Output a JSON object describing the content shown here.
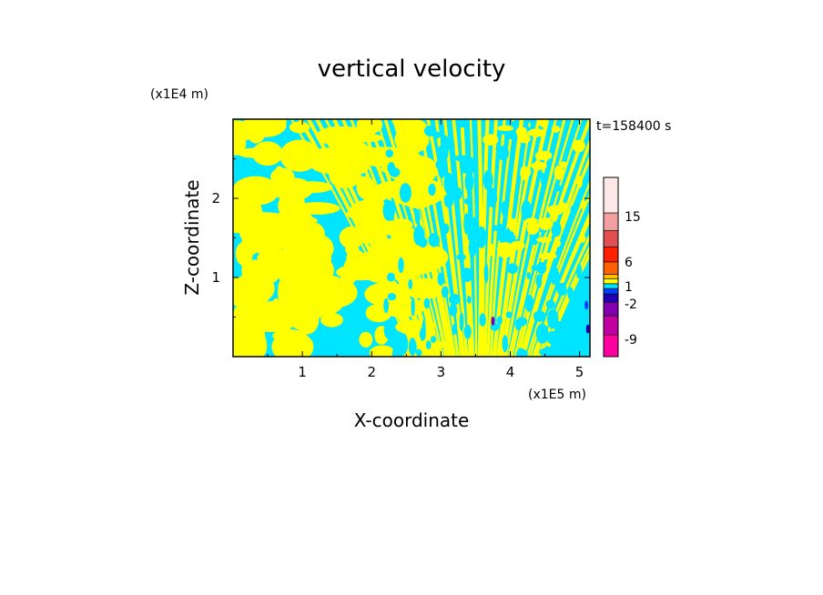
{
  "chart_data": {
    "type": "heatmap",
    "title": "vertical velocity",
    "xlabel": "X-coordinate",
    "ylabel": "Z-coordinate",
    "x_unit": "(x1E5 m)",
    "y_unit": "(x1E4 m)",
    "time_label": "t=158400 s",
    "xlim": [
      0,
      5.15
    ],
    "ylim": [
      0,
      3.0
    ],
    "x_ticks": [
      1,
      2,
      3,
      4,
      5
    ],
    "y_ticks": [
      1,
      2
    ],
    "grid": false,
    "colorbar": {
      "placement": "right",
      "tick_labels": [
        "15",
        "6",
        "1",
        "-2",
        "-9"
      ],
      "levels": [
        {
          "color": "#ff00a0"
        },
        {
          "color": "#c000a0"
        },
        {
          "color": "#8000b0"
        },
        {
          "color": "#2000b0"
        },
        {
          "color": "#0040ff"
        },
        {
          "color": "#00e5ff"
        },
        {
          "color": "#ffff00"
        },
        {
          "color": "#ffc000"
        },
        {
          "color": "#ff6000"
        },
        {
          "color": "#ff2000"
        },
        {
          "color": "#e05050"
        },
        {
          "color": "#f4a0a0"
        },
        {
          "color": "#fde8e8"
        }
      ]
    },
    "dominant_fields": {
      "positive_color": "#ffff00",
      "negative_color": "#00e5ff"
    }
  }
}
